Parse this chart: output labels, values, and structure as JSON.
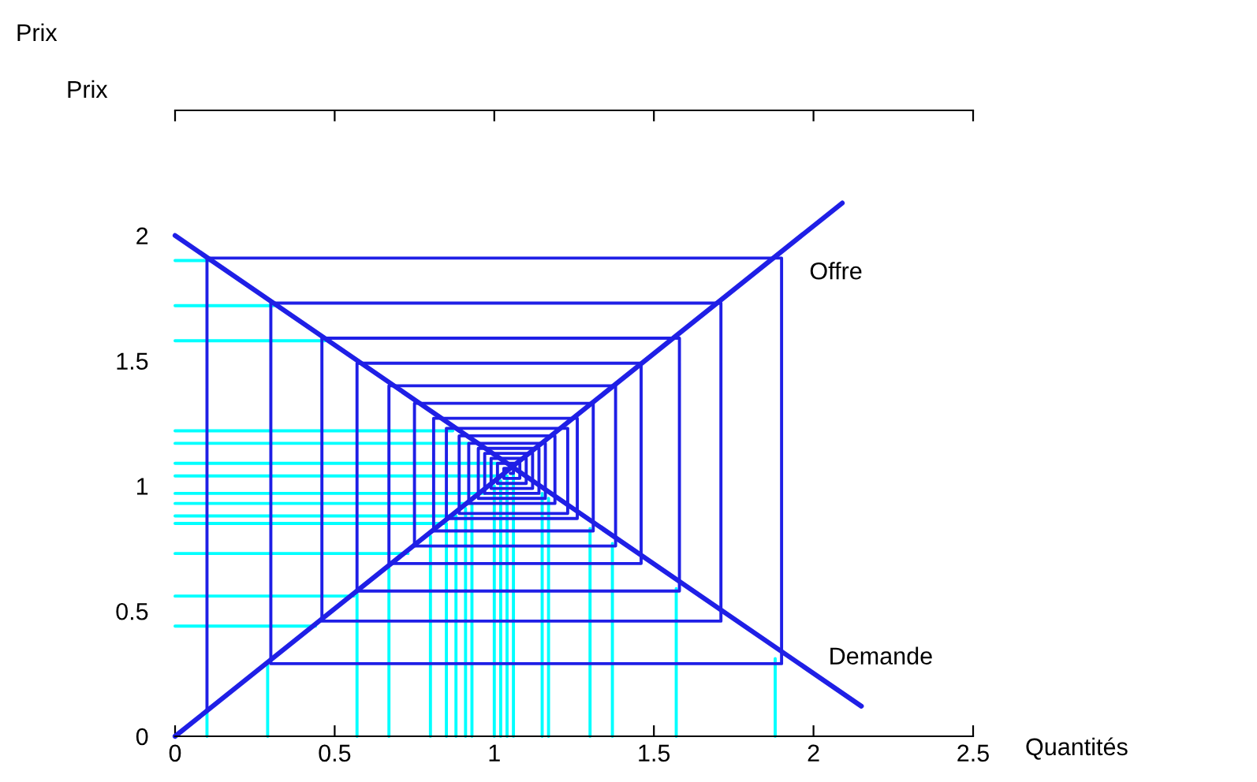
{
  "chart_data": {
    "type": "line",
    "title": "Prix",
    "ylabel": "Prix",
    "xlabel": "Quantités",
    "xlim": [
      0,
      2.5
    ],
    "xticks": [
      0,
      0.5,
      1,
      1.5,
      2,
      2.5
    ],
    "ylim": [
      0,
      2.5
    ],
    "yticks": [
      0,
      0.5,
      1,
      1.5,
      2
    ],
    "grid": false,
    "legend": false,
    "marker": "none",
    "line_style": "solid",
    "series": [
      {
        "color": "#00ffff",
        "x": [
          0.1,
          0.1,
          null,
          0.29,
          0.29,
          null,
          0.57,
          0.57,
          null,
          0.67,
          0.67,
          null,
          0.8,
          0.8,
          null,
          0.85,
          0.85,
          null,
          0.88,
          0.88,
          null,
          0.91,
          0.91,
          null,
          0.93,
          0.93,
          null,
          1.0,
          1.0,
          null,
          1.02,
          1.02,
          null,
          1.04,
          1.04,
          null,
          1.06,
          1.06,
          null,
          1.15,
          1.15,
          null,
          1.17,
          1.17,
          null,
          1.3,
          1.3,
          null,
          1.37,
          1.37,
          null,
          1.57,
          1.57,
          null,
          1.88,
          1.88,
          null,
          0,
          0.11,
          null,
          0,
          0.31,
          null,
          0,
          0.47,
          null,
          0,
          0.87,
          null,
          0,
          0.92,
          null,
          0,
          1.01,
          null,
          0,
          1.04,
          null,
          0,
          0.97,
          null,
          0,
          0.93,
          null,
          0,
          0.88,
          null,
          0,
          0.85,
          null,
          0,
          0.73,
          null,
          0,
          0.56,
          null,
          0,
          0.44
        ],
        "values": [
          0,
          0.1,
          null,
          0,
          0.29,
          null,
          0,
          0.57,
          null,
          0,
          0.67,
          null,
          0,
          0.8,
          null,
          0,
          0.85,
          null,
          0,
          0.88,
          null,
          0,
          0.91,
          null,
          0,
          0.93,
          null,
          0,
          1.0,
          null,
          0,
          1.02,
          null,
          0,
          1.04,
          null,
          0,
          1.05,
          null,
          0,
          0.97,
          null,
          0,
          0.95,
          null,
          0,
          0.83,
          null,
          0,
          0.77,
          null,
          0,
          0.59,
          null,
          0,
          0.31,
          null,
          1.9,
          1.9,
          null,
          1.72,
          1.72,
          null,
          1.58,
          1.58,
          null,
          1.22,
          1.22,
          null,
          1.17,
          1.17,
          null,
          1.09,
          1.09,
          null,
          1.04,
          1.04,
          null,
          0.97,
          0.97,
          null,
          0.93,
          0.93,
          null,
          0.88,
          0.88,
          null,
          0.85,
          0.85,
          null,
          0.73,
          0.73,
          null,
          0.56,
          0.56,
          null,
          0.44,
          0.44
        ]
      },
      {
        "color": "#1f1fe6",
        "x": [
          0.1,
          0.1,
          1.9,
          1.9,
          0.3,
          0.3,
          1.71,
          1.71,
          0.46,
          0.46,
          1.58,
          1.58,
          0.57,
          0.57,
          1.46,
          1.46,
          0.67,
          0.67,
          1.38,
          1.38,
          0.75,
          0.75,
          1.31,
          1.31,
          0.81,
          0.81,
          1.26,
          1.26,
          0.85,
          0.85,
          1.23,
          1.23,
          0.89,
          0.89,
          1.19,
          1.19,
          0.92,
          0.92,
          1.16,
          1.16,
          0.95,
          0.95,
          1.14,
          1.14,
          0.97,
          0.97,
          1.12,
          1.12,
          0.99,
          0.99,
          1.1,
          1.1,
          1.01,
          1.01,
          1.08,
          1.08,
          1.03,
          1.03,
          1.06,
          1.06,
          1.05
        ],
        "values": [
          0.1,
          1.91,
          1.91,
          0.29,
          0.29,
          1.73,
          1.73,
          0.46,
          0.46,
          1.59,
          1.59,
          0.58,
          0.58,
          1.49,
          1.49,
          0.69,
          0.69,
          1.4,
          1.4,
          0.76,
          0.76,
          1.33,
          1.33,
          0.82,
          0.82,
          1.27,
          1.27,
          0.87,
          0.87,
          1.23,
          1.23,
          0.89,
          0.89,
          1.2,
          1.2,
          0.93,
          0.93,
          1.17,
          1.17,
          0.95,
          0.95,
          1.15,
          1.15,
          0.97,
          0.97,
          1.13,
          1.13,
          0.99,
          0.99,
          1.11,
          1.11,
          1.01,
          1.01,
          1.09,
          1.09,
          1.03,
          1.03,
          1.07,
          1.07,
          1.05,
          1.05
        ]
      },
      {
        "name": "Offre",
        "color": "#1f1fe6",
        "x": [
          0,
          2.09
        ],
        "values": [
          0,
          2.13
        ]
      },
      {
        "name": "Demande",
        "color": "#1f1fe6",
        "x": [
          0,
          2.15
        ],
        "values": [
          2,
          0.12
        ]
      }
    ]
  }
}
